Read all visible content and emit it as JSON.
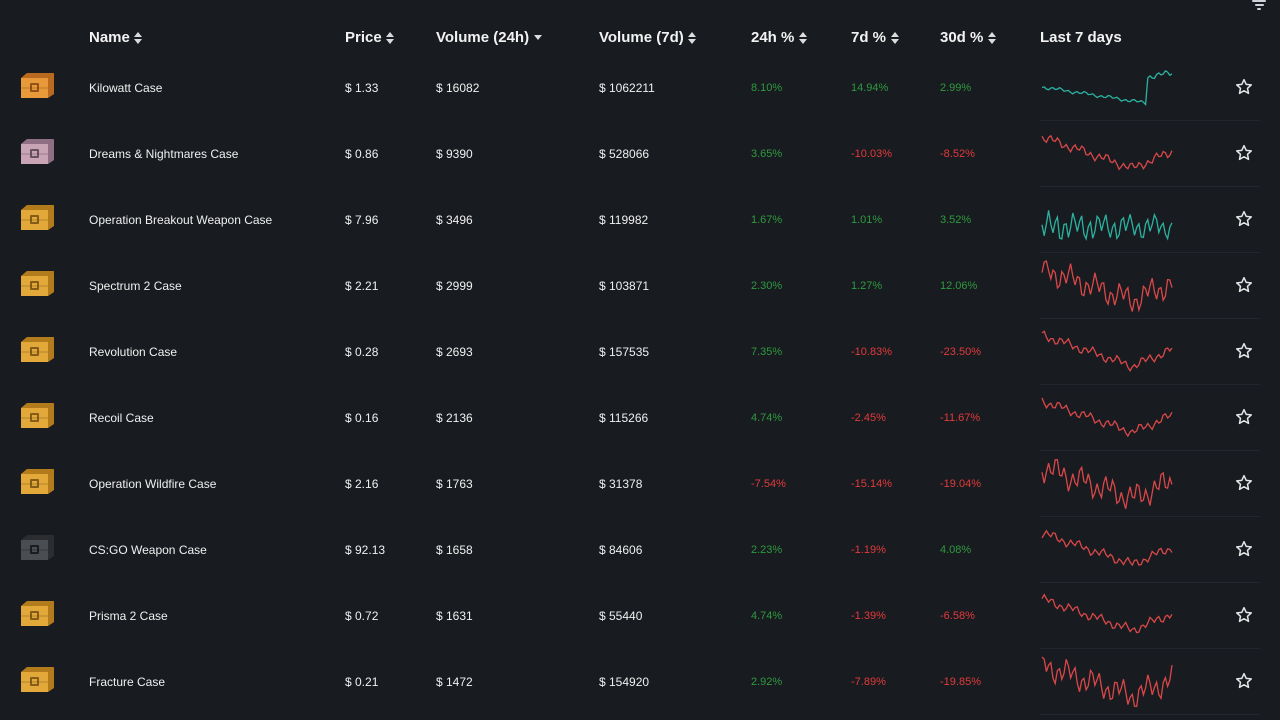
{
  "colors": {
    "positive": "#2e9b3e",
    "negative": "#e23b3b",
    "spark_up": "#2bb3a0",
    "spark_down": "#d94848",
    "background": "#181b20"
  },
  "header": {
    "name": "Name",
    "price": "Price",
    "volume_24h": "Volume (24h)",
    "volume_7d": "Volume (7d)",
    "change_24h": "24h %",
    "change_7d": "7d %",
    "change_30d": "30d %",
    "last_7_days": "Last 7 days"
  },
  "rows": [
    {
      "name": "Kilowatt Case",
      "price": "$ 1.33",
      "vol24": "$ 16082",
      "vol7": "$ 1062211",
      "p24": "8.10%",
      "p7": "14.94%",
      "p30": "2.99%",
      "icon": "orange-crate",
      "trend": "up"
    },
    {
      "name": "Dreams & Nightmares Case",
      "price": "$ 0.86",
      "vol24": "$ 9390",
      "vol7": "$ 528066",
      "p24": "3.65%",
      "p7": "-10.03%",
      "p30": "-8.52%",
      "icon": "pink-crate",
      "trend": "down"
    },
    {
      "name": "Operation Breakout Weapon Case",
      "price": "$ 7.96",
      "vol24": "$ 3496",
      "vol7": "$ 119982",
      "p24": "1.67%",
      "p7": "1.01%",
      "p30": "3.52%",
      "icon": "gold-crate",
      "trend": "up"
    },
    {
      "name": "Spectrum 2 Case",
      "price": "$ 2.21",
      "vol24": "$ 2999",
      "vol7": "$ 103871",
      "p24": "2.30%",
      "p7": "1.27%",
      "p30": "12.06%",
      "icon": "gold-crate",
      "trend": "down"
    },
    {
      "name": "Revolution Case",
      "price": "$ 0.28",
      "vol24": "$ 2693",
      "vol7": "$ 157535",
      "p24": "7.35%",
      "p7": "-10.83%",
      "p30": "-23.50%",
      "icon": "gold-crate",
      "trend": "down"
    },
    {
      "name": "Recoil Case",
      "price": "$ 0.16",
      "vol24": "$ 2136",
      "vol7": "$ 115266",
      "p24": "4.74%",
      "p7": "-2.45%",
      "p30": "-11.67%",
      "icon": "gold-crate",
      "trend": "down"
    },
    {
      "name": "Operation Wildfire Case",
      "price": "$ 2.16",
      "vol24": "$ 1763",
      "vol7": "$ 31378",
      "p24": "-7.54%",
      "p7": "-15.14%",
      "p30": "-19.04%",
      "icon": "gold-crate",
      "trend": "down"
    },
    {
      "name": "CS:GO Weapon Case",
      "price": "$ 92.13",
      "vol24": "$ 1658",
      "vol7": "$ 84606",
      "p24": "2.23%",
      "p7": "-1.19%",
      "p30": "4.08%",
      "icon": "black-crate",
      "trend": "down"
    },
    {
      "name": "Prisma 2 Case",
      "price": "$ 0.72",
      "vol24": "$ 1631",
      "vol7": "$ 55440",
      "p24": "4.74%",
      "p7": "-1.39%",
      "p30": "-6.58%",
      "icon": "gold-crate",
      "trend": "down"
    },
    {
      "name": "Fracture Case",
      "price": "$ 0.21",
      "vol24": "$ 1472",
      "vol7": "$ 154920",
      "p24": "2.92%",
      "p7": "-7.89%",
      "p30": "-19.85%",
      "icon": "gold-crate",
      "trend": "down"
    }
  ]
}
